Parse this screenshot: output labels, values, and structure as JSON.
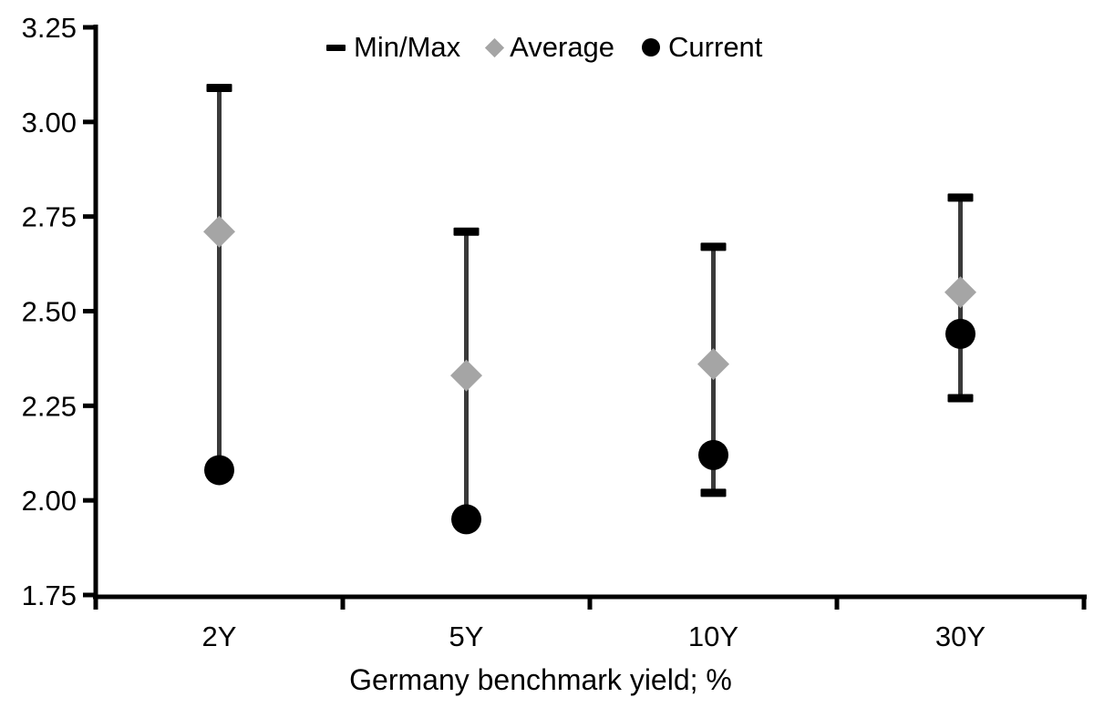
{
  "chart_data": {
    "type": "scatter",
    "subtype": "min-max-range-with-markers",
    "title": "",
    "xlabel": "Germany benchmark yield; %",
    "ylabel": "",
    "categories": [
      "2Y",
      "5Y",
      "10Y",
      "30Y"
    ],
    "series": [
      {
        "name": "Min/Max",
        "type": "range",
        "marker": "dash",
        "min": [
          2.08,
          1.95,
          2.02,
          2.27
        ],
        "max": [
          3.09,
          2.71,
          2.67,
          2.8
        ]
      },
      {
        "name": "Average",
        "type": "point",
        "marker": "diamond",
        "values": [
          2.71,
          2.33,
          2.36,
          2.55
        ]
      },
      {
        "name": "Current",
        "type": "point",
        "marker": "circle",
        "values": [
          2.08,
          1.95,
          2.12,
          2.44
        ]
      }
    ],
    "ylim": [
      1.75,
      3.25
    ],
    "ytick_values": [
      3.25,
      3.0,
      2.75,
      2.5,
      2.25,
      2.0,
      1.75
    ],
    "ytick_labels": [
      "3.25",
      "3.00",
      "2.75",
      "2.50",
      "2.25",
      "2.00",
      "1.75"
    ],
    "grid": false,
    "legend_position": "top"
  },
  "colors": {
    "axis": "#000000",
    "text": "#000000",
    "range_line": "#3a3a3a",
    "range_cap": "#000000",
    "average": "#a5a5a5",
    "current": "#000000",
    "background": "#ffffff"
  }
}
